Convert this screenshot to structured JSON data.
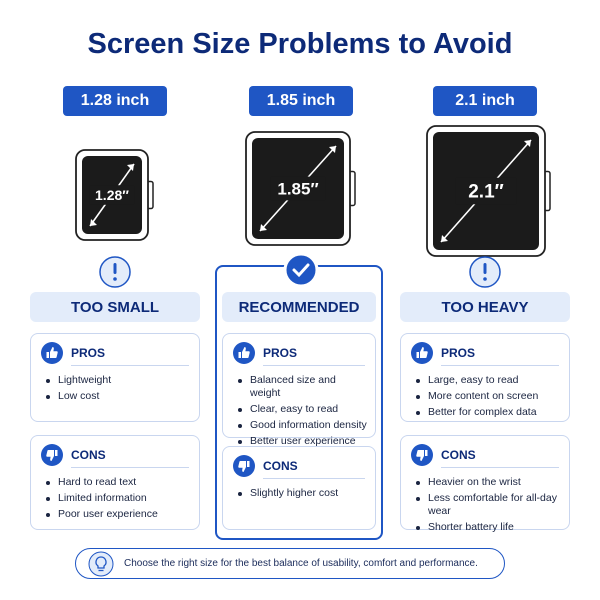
{
  "title": "Screen Size Problems to Avoid",
  "columns": [
    {
      "size": "1.28 inch",
      "screen_label": "1.28″",
      "verdict": "TOO SMALL",
      "pros_title": "PROS",
      "pros": [
        "Lightweight",
        "Low cost"
      ],
      "cons_title": "CONS",
      "cons": [
        "Hard to read text",
        "Limited information",
        "Poor user experience"
      ]
    },
    {
      "size": "1.85 inch",
      "screen_label": "1.85″",
      "verdict": "RECOMMENDED",
      "pros_title": "PROS",
      "pros": [
        "Balanced size and weight",
        "Clear, easy to read",
        "Good information density",
        "Better user experience"
      ],
      "cons_title": "CONS",
      "cons": [
        "Slightly higher cost"
      ]
    },
    {
      "size": "2.1 inch",
      "screen_label": "2.1″",
      "verdict": "TOO HEAVY",
      "pros_title": "PROS",
      "pros": [
        "Large, easy to read",
        "More content on screen",
        "Better for complex data"
      ],
      "cons_title": "CONS",
      "cons": [
        "Heavier on the wrist",
        "Less comfortable for all-day wear",
        "Shorter battery life"
      ]
    }
  ],
  "footer": "Choose the right size for the best balance of usability, comfort and performance."
}
